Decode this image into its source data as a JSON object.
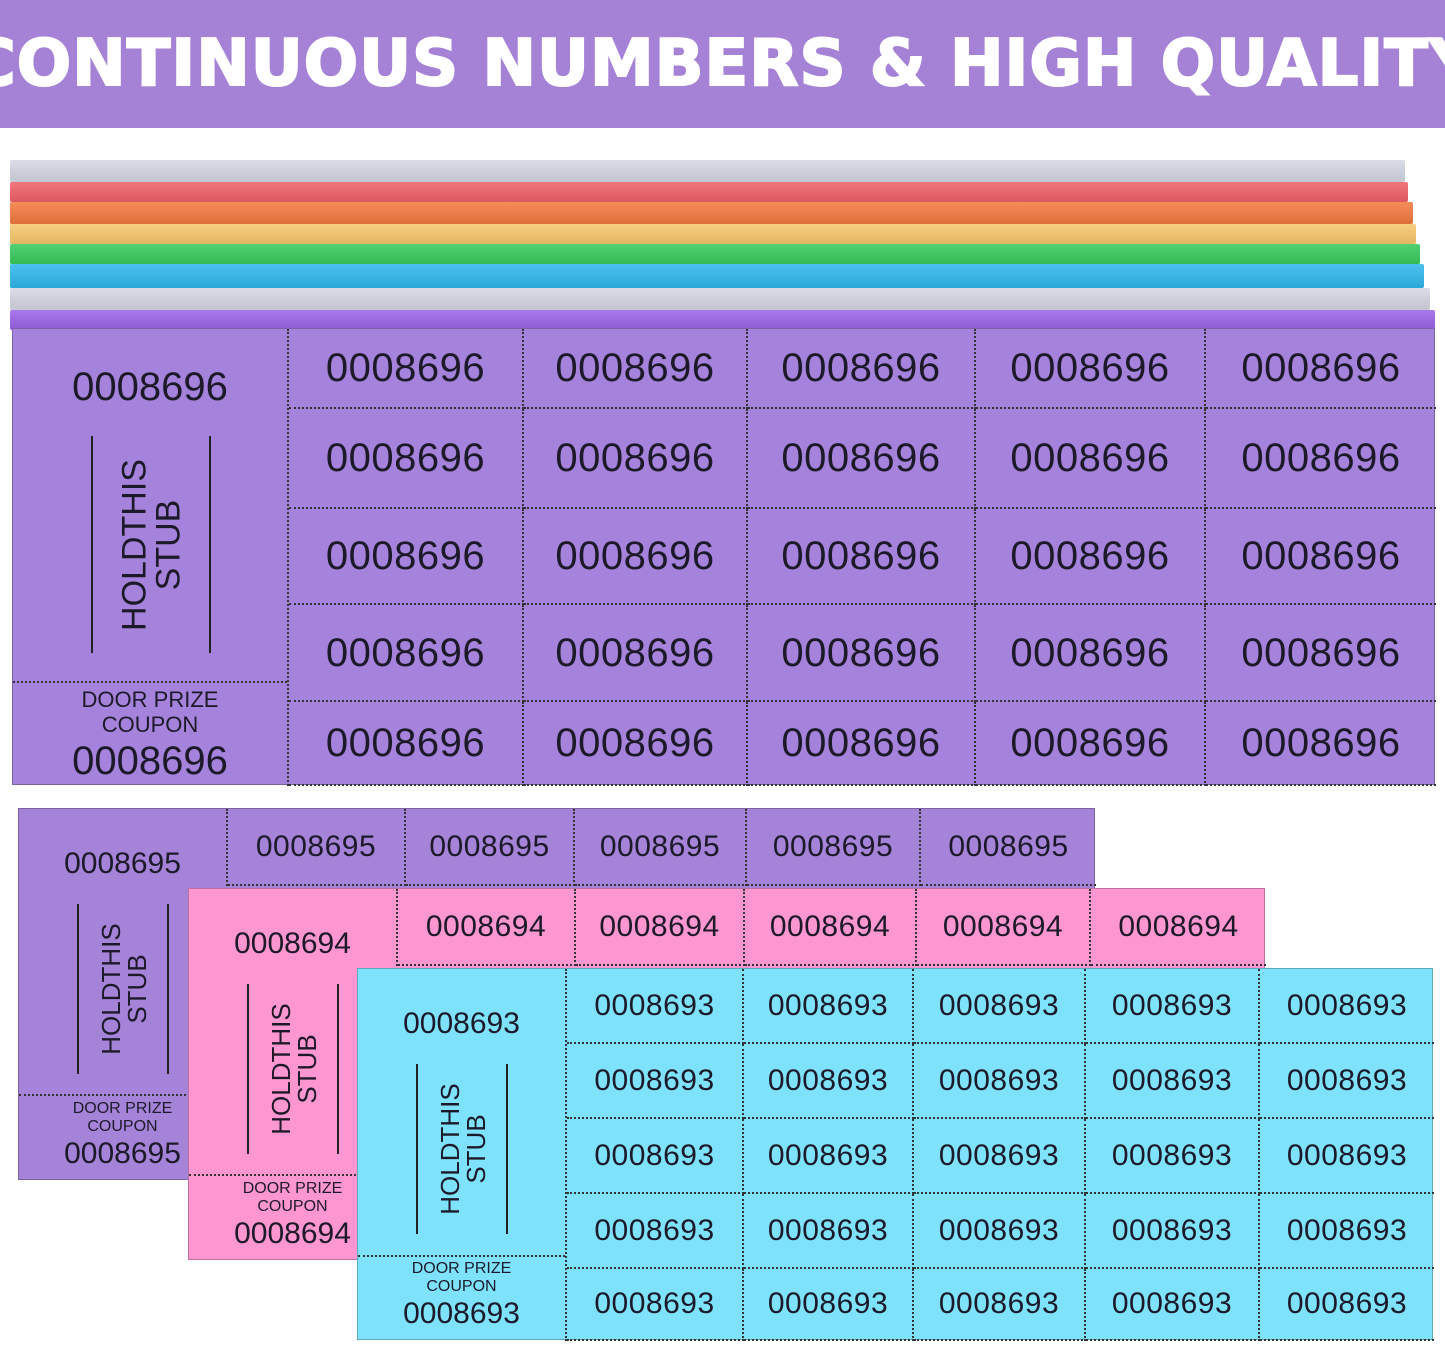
{
  "banner": {
    "title": "CONTINUOUS NUMBERS & HIGH QUALITY",
    "color": "#a582d6"
  },
  "stack_colors": [
    "#d3d6e2",
    "#ee5f66",
    "#f2783d",
    "#f6c66a",
    "#36c95a",
    "#2eb6ec",
    "#d3d6e2",
    "#9a62e6"
  ],
  "sheets": [
    {
      "color": "#a583dc",
      "number": "0008696",
      "stub_label": [
        "HOLDTHIS",
        "STUB"
      ],
      "coupon_label": [
        "DOOR PRIZE",
        "COUPON"
      ],
      "rows": 5,
      "cols": 5
    },
    {
      "color": "#a483d8",
      "number": "0008695",
      "stub_label": [
        "HOLDTHIS",
        "STUB"
      ],
      "coupon_label": [
        "DOOR PRIZE",
        "COUPON"
      ],
      "rows": 1,
      "cols": 5
    },
    {
      "color": "#fe96d2",
      "number": "0008694",
      "stub_label": [
        "HOLDTHIS",
        "STUB"
      ],
      "coupon_label": [
        "DOOR PRIZE",
        "COUPON"
      ],
      "rows": 1,
      "cols": 5
    },
    {
      "color": "#7fe2fd",
      "number": "0008693",
      "stub_label": [
        "HOLDTHIS",
        "STUB"
      ],
      "coupon_label": [
        "DOOR PRIZE",
        "COUPON"
      ],
      "rows": 5,
      "cols": 5
    }
  ]
}
